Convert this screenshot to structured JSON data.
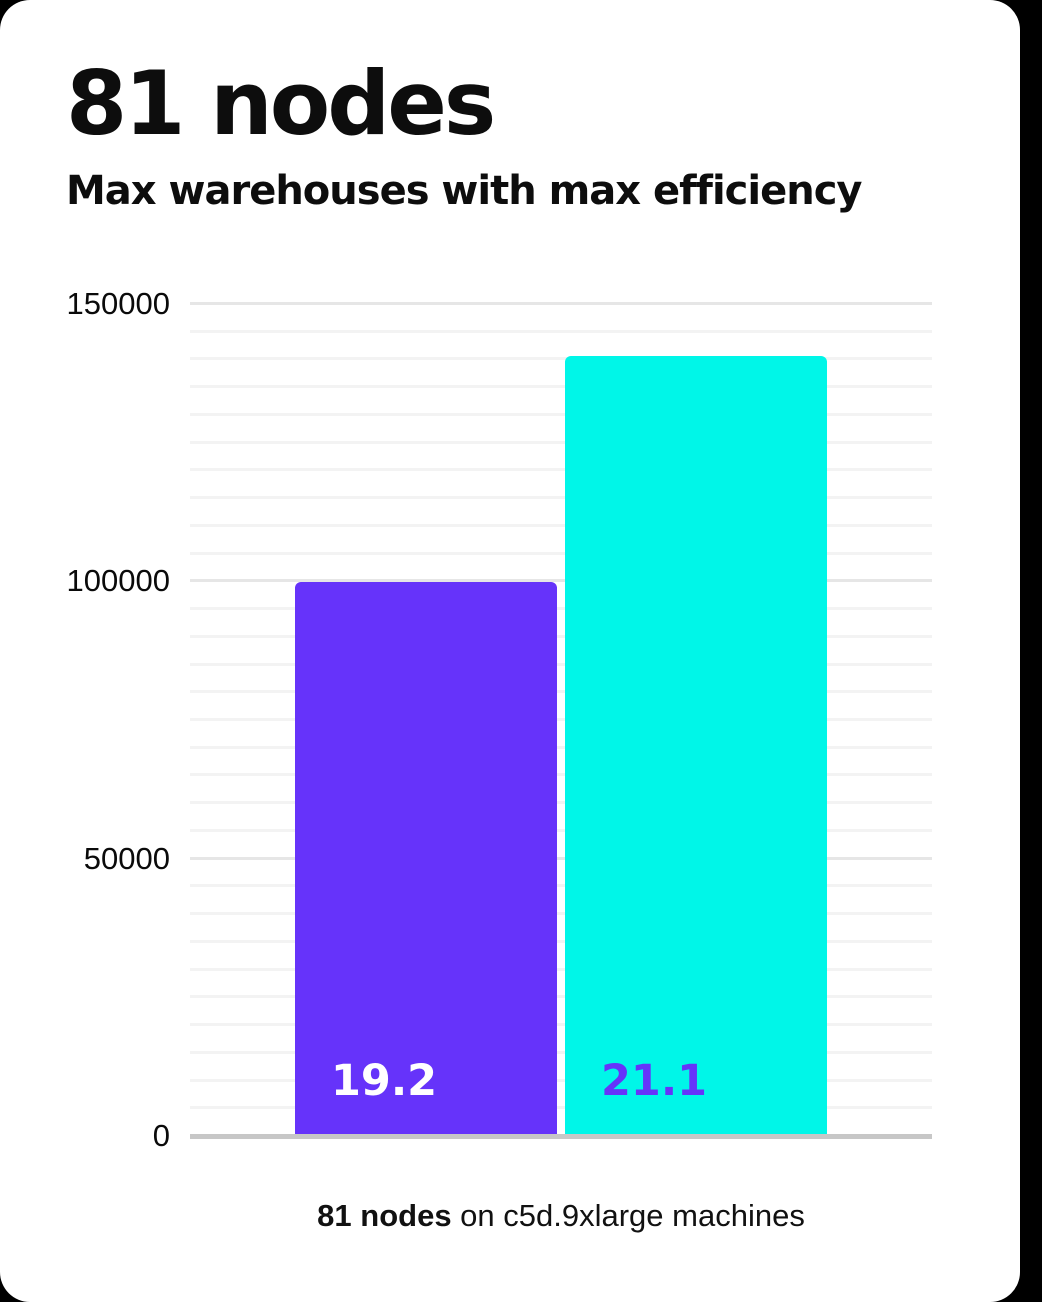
{
  "header": {
    "title": "81 nodes",
    "subtitle": "Max warehouses with max efficiency"
  },
  "caption": {
    "bold": "81 nodes",
    "rest": " on c5d.9xlarge machines"
  },
  "colors": {
    "background": "#000000",
    "card_bg": "#FFFFFF",
    "text": "#0D0D0D",
    "bar_purple": "#6633FA",
    "bar_cyan": "#00F6E8",
    "grid_minor": "#F3F3F3",
    "grid_major": "#E6E6E6",
    "axis_line": "#C7C7C7"
  },
  "chart_data": {
    "type": "bar",
    "title": "81 nodes",
    "subtitle": "Max warehouses with max efficiency",
    "categories": [
      "19.2",
      "21.1"
    ],
    "values": [
      99500,
      140200
    ],
    "bar_labels": [
      "19.2",
      "21.1"
    ],
    "bar_colors": [
      "#6633FA",
      "#00F6E8"
    ],
    "label_colors": [
      "#FFFFFF",
      "#6633FA"
    ],
    "ylabel": "",
    "xlabel": "",
    "ylim": [
      0,
      150000
    ],
    "yticks": [
      0,
      50000,
      100000,
      150000
    ],
    "ytick_labels": [
      "0",
      "50000",
      "100000",
      "150000"
    ],
    "grid_minor_step": 5000,
    "grid_major_step": 50000,
    "grid": "horizontal",
    "legend_position": "none",
    "caption": "81 nodes on c5d.9xlarge machines"
  }
}
